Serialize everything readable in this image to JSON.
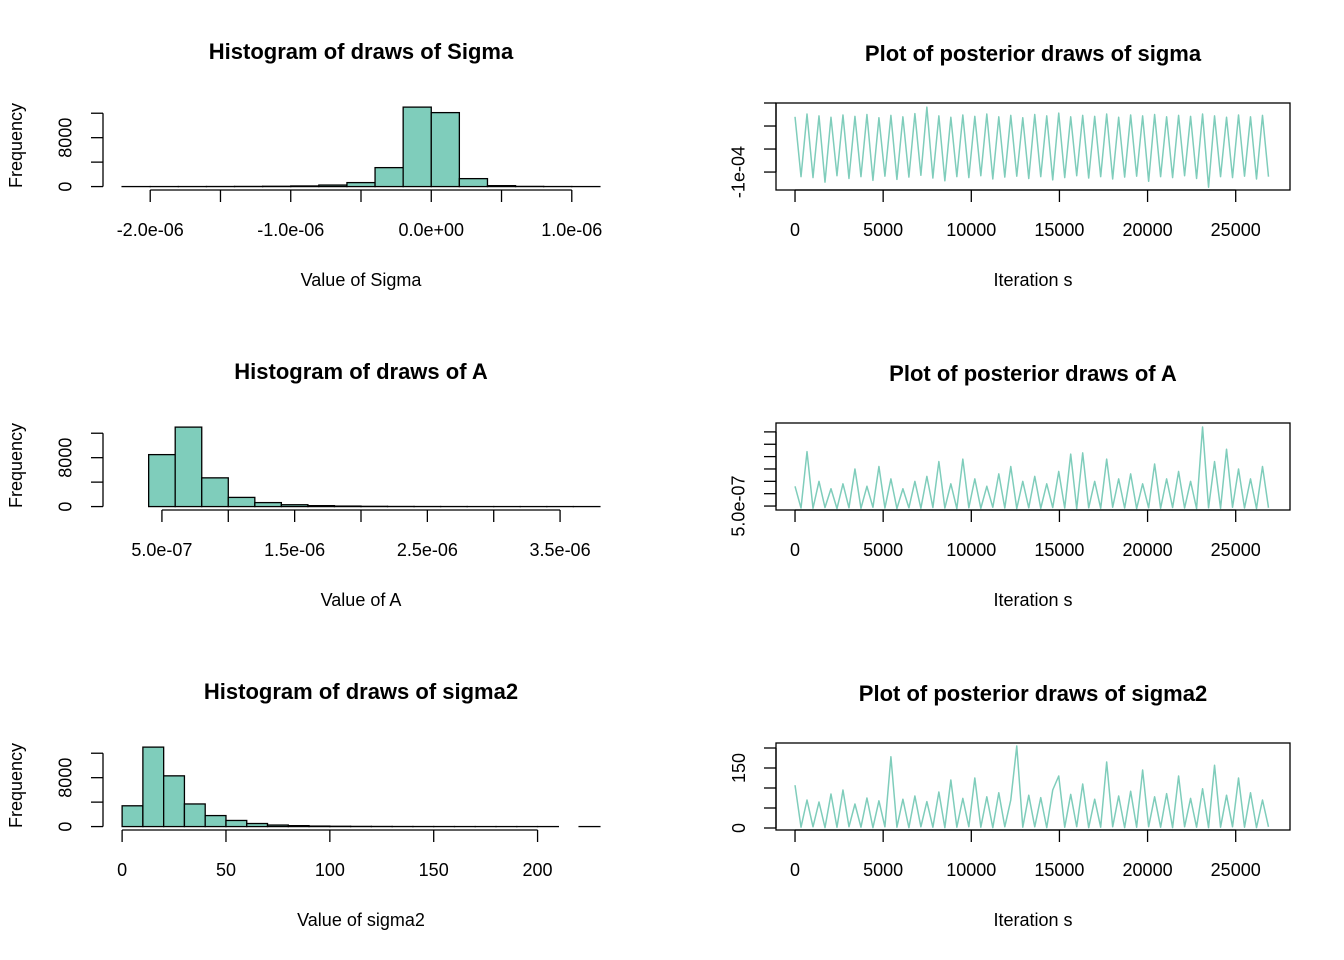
{
  "chart_data": [
    {
      "type": "histogram",
      "title": "Histogram of draws of Sigma",
      "xlabel": "Value of Sigma",
      "ylabel": "Frequency",
      "color": "#7fcdbb",
      "border": "#000000",
      "bins": [
        -2.2e-06,
        -2e-06,
        -1.8e-06,
        -1.6e-06,
        -1.4e-06,
        -1.2e-06,
        -1e-06,
        -8e-07,
        -6e-07,
        -4e-07,
        -2e-07,
        0,
        2e-07,
        4e-07,
        6e-07,
        8e-07,
        1e-06,
        1.2e-06
      ],
      "counts": [
        1,
        3,
        5,
        12,
        25,
        50,
        100,
        250,
        650,
        3100,
        13000,
        12100,
        1300,
        150,
        30,
        6,
        1
      ],
      "xlim": [
        -2.336e-06,
        1.336e-06
      ],
      "ylim": [
        -560,
        14000
      ],
      "xticks": [
        {
          "value": -2e-06,
          "label": "-2.0e-06"
        },
        {
          "value": -1.5e-06,
          "label": null
        },
        {
          "value": -1e-06,
          "label": "-1.0e-06"
        },
        {
          "value": -5e-07,
          "label": null
        },
        {
          "value": 0,
          "label": "0.0e+00"
        },
        {
          "value": 5e-07,
          "label": null
        },
        {
          "value": 1e-06,
          "label": "1.0e-06"
        }
      ],
      "yticks": [
        0,
        {
          "value": 4000,
          "label": null
        },
        8000,
        {
          "value": 12000,
          "label": null
        }
      ]
    },
    {
      "type": "line",
      "title": "Plot of posterior draws of sigma",
      "xlabel": "Iteration s",
      "color": "#7fcdbb",
      "box": true,
      "x": [
        0,
        340,
        680,
        1020,
        1360,
        1700,
        2040,
        2380,
        2720,
        3060,
        3400,
        3740,
        4080,
        4420,
        4760,
        5100,
        5440,
        5780,
        6120,
        6460,
        6800,
        7140,
        7480,
        7820,
        8160,
        8500,
        8840,
        9180,
        9520,
        9860,
        10200,
        10540,
        10880,
        11220,
        11560,
        11900,
        12240,
        12580,
        12920,
        13260,
        13600,
        13940,
        14280,
        14620,
        14960,
        15300,
        15640,
        15980,
        16320,
        16660,
        17000,
        17340,
        17680,
        18020,
        18360,
        18700,
        19040,
        19380,
        19720,
        20060,
        20400,
        20740,
        21080,
        21420,
        21760,
        22100,
        22440,
        22780,
        23120,
        23460,
        23800,
        24140,
        24480,
        24820,
        25160,
        25500,
        25840,
        26180,
        26520,
        26860
      ],
      "values": [
        2e-05,
        -0.00011,
        2.6e-05,
        -0.000112,
        2.2e-05,
        -0.000122,
        1.9e-05,
        -0.000108,
        2.4e-05,
        -0.000114,
        2.1e-05,
        -0.00011,
        2.5e-05,
        -0.000118,
        1.8e-05,
        -0.000109,
        2.3e-05,
        -0.000116,
        2e-05,
        -0.000111,
        2.7e-05,
        -0.000107,
        4.1e-05,
        -0.000113,
        2.2e-05,
        -0.000119,
        1.9e-05,
        -0.00011,
        2.4e-05,
        -0.000112,
        2.1e-05,
        -0.000108,
        2.6e-05,
        -0.000115,
        2e-05,
        -0.000111,
        2.3e-05,
        -0.000109,
        1.8e-05,
        -0.000114,
        2.5e-05,
        -0.00011,
        2.2e-05,
        -0.000117,
        2.8e-05,
        -0.000112,
        2e-05,
        -0.000108,
        2.3e-05,
        -0.000113,
        2.1e-05,
        -0.00011,
        2.6e-05,
        -0.000115,
        1.9e-05,
        -0.000111,
        2.4e-05,
        -0.000109,
        2.2e-05,
        -0.00012,
        2.5e-05,
        -0.00011,
        2e-05,
        -0.000112,
        2.3e-05,
        -0.000108,
        2.1e-05,
        -0.000114,
        2.6e-05,
        -0.000133,
        2.2e-05,
        -0.00011,
        1.9e-05,
        -0.000112,
        2.4e-05,
        -0.000109,
        2e-05,
        -0.000115,
        2.3e-05,
        -0.00011
      ],
      "xlim": [
        -1079,
        28080
      ],
      "ylim": [
        -0.000139,
        5e-05
      ],
      "xticks": [
        0,
        5000,
        10000,
        15000,
        20000,
        25000
      ],
      "yticks": [
        {
          "value": -0.0001,
          "label": "-1e-04"
        },
        {
          "value": -5e-05,
          "label": null
        },
        {
          "value": 0,
          "label": null
        },
        {
          "value": 5e-05,
          "label": null
        }
      ]
    },
    {
      "type": "histogram",
      "title": "Histogram of draws of A",
      "xlabel": "Value of A",
      "ylabel": "Frequency",
      "color": "#7fcdbb",
      "border": "#000000",
      "bins": [
        2e-07,
        4e-07,
        6e-07,
        8e-07,
        1e-06,
        1.2e-06,
        1.4e-06,
        1.6e-06,
        1.8e-06,
        2e-06,
        2.2e-06,
        2.4e-06,
        2.6e-06,
        2.8e-06,
        3e-06,
        3.2e-06,
        3.4e-06,
        3.6e-06,
        3.8e-06
      ],
      "counts": [
        0,
        8500,
        13000,
        4700,
        1500,
        650,
        300,
        150,
        80,
        40,
        20,
        10,
        6,
        3,
        2,
        1,
        1,
        1
      ],
      "xlim": [
        5.6e-08,
        3.944e-06
      ],
      "ylim": [
        -560,
        14000
      ],
      "xticks": [
        {
          "value": 5e-07,
          "label": "5.0e-07"
        },
        {
          "value": 1e-06,
          "label": null
        },
        {
          "value": 1.5e-06,
          "label": "1.5e-06"
        },
        {
          "value": 2e-06,
          "label": null
        },
        {
          "value": 2.5e-06,
          "label": "2.5e-06"
        },
        {
          "value": 3e-06,
          "label": null
        },
        {
          "value": 3.5e-06,
          "label": "3.5e-06"
        }
      ],
      "yticks": [
        0,
        {
          "value": 4000,
          "label": null
        },
        8000,
        {
          "value": 12000,
          "label": null
        }
      ]
    },
    {
      "type": "line",
      "title": "Plot of posterior draws of A",
      "xlabel": "Iteration s",
      "color": "#7fcdbb",
      "box": true,
      "x": [
        0,
        340,
        680,
        1020,
        1360,
        1700,
        2040,
        2380,
        2720,
        3060,
        3400,
        3740,
        4080,
        4420,
        4760,
        5100,
        5440,
        5780,
        6120,
        6460,
        6800,
        7140,
        7480,
        7820,
        8160,
        8500,
        8840,
        9180,
        9520,
        9860,
        10200,
        10540,
        10880,
        11220,
        11560,
        11900,
        12240,
        12580,
        12920,
        13260,
        13600,
        13940,
        14280,
        14620,
        14960,
        15300,
        15640,
        15980,
        16320,
        16660,
        17000,
        17340,
        17680,
        18020,
        18360,
        18700,
        19040,
        19380,
        19720,
        20060,
        20400,
        20740,
        21080,
        21420,
        21760,
        22100,
        22440,
        22780,
        23120,
        23460,
        23800,
        24140,
        24480,
        24820,
        25160,
        25500,
        25840,
        26180,
        26520,
        26860
      ],
      "values": [
        1.3e-06,
        4.2e-07,
        2.7e-06,
        4.1e-07,
        1.5e-06,
        4.4e-07,
        1.2e-06,
        4e-07,
        1.4e-06,
        4.3e-07,
        2e-06,
        4.1e-07,
        1.3e-06,
        4.5e-07,
        2.1e-06,
        4.2e-07,
        1.6e-06,
        4e-07,
        1.2e-06,
        4.3e-07,
        1.5e-06,
        4.1e-07,
        1.7e-06,
        4.4e-07,
        2.3e-06,
        4.2e-07,
        1.4e-06,
        4e-07,
        2.4e-06,
        4.3e-07,
        1.6e-06,
        4.1e-07,
        1.3e-06,
        4.5e-07,
        1.8e-06,
        4.2e-07,
        2.1e-06,
        4e-07,
        1.5e-06,
        4.3e-07,
        1.7e-06,
        4.1e-07,
        1.4e-06,
        4.4e-07,
        1.9e-06,
        4.2e-07,
        2.6e-06,
        4e-07,
        2.65e-06,
        4.3e-07,
        1.5e-06,
        4.1e-07,
        2.4e-06,
        4.5e-07,
        1.6e-06,
        4.2e-07,
        1.8e-06,
        4e-07,
        1.4e-06,
        4.3e-07,
        2.2e-06,
        4.1e-07,
        1.6e-06,
        4.4e-07,
        1.9e-06,
        4.2e-07,
        1.5e-06,
        4e-07,
        3.7e-06,
        4.3e-07,
        2.3e-06,
        4.1e-07,
        2.8e-06,
        4.5e-07,
        2e-06,
        4.2e-07,
        1.6e-06,
        4e-07,
        2.1e-06,
        4.3e-07
      ],
      "xlim": [
        -1079,
        28080
      ],
      "ylim": [
        3.4e-07,
        3.86e-06
      ],
      "xticks": [
        0,
        5000,
        10000,
        15000,
        20000,
        25000
      ],
      "yticks": [
        {
          "value": 5e-07,
          "label": "5.0e-07"
        },
        {
          "value": 1e-06,
          "label": null
        },
        {
          "value": 1.5e-06,
          "label": null
        },
        {
          "value": 2e-06,
          "label": null
        },
        {
          "value": 2.5e-06,
          "label": null
        },
        {
          "value": 3e-06,
          "label": null
        },
        {
          "value": 3.5e-06,
          "label": null
        }
      ]
    },
    {
      "type": "histogram",
      "title": "Histogram of draws of sigma2",
      "xlabel": "Value of sigma2",
      "ylabel": "Frequency",
      "color": "#7fcdbb",
      "border": "#000000",
      "bins": [
        0,
        10,
        20,
        30,
        40,
        50,
        60,
        70,
        80,
        90,
        100,
        110,
        120,
        130,
        140,
        150,
        160,
        170,
        180,
        190,
        200,
        210,
        220,
        230
      ],
      "counts": [
        3400,
        13000,
        8300,
        3700,
        1800,
        1000,
        500,
        250,
        150,
        80,
        50,
        30,
        20,
        12,
        8,
        5,
        3,
        2,
        2,
        1,
        1,
        0,
        1
      ],
      "xlim": [
        -9.2,
        239.2
      ],
      "ylim": [
        -560,
        14000
      ],
      "xticks": [
        0,
        50,
        100,
        150,
        200
      ],
      "yticks": [
        0,
        {
          "value": 4000,
          "label": null
        },
        8000,
        {
          "value": 12000,
          "label": null
        }
      ]
    },
    {
      "type": "line",
      "title": "Plot of posterior draws of sigma2",
      "xlabel": "Iteration s",
      "color": "#7fcdbb",
      "box": true,
      "x": [
        0,
        340,
        680,
        1020,
        1360,
        1700,
        2040,
        2380,
        2720,
        3060,
        3400,
        3740,
        4080,
        4420,
        4760,
        5100,
        5440,
        5780,
        6120,
        6460,
        6800,
        7140,
        7480,
        7820,
        8160,
        8500,
        8840,
        9180,
        9520,
        9860,
        10200,
        10540,
        10880,
        11220,
        11560,
        11900,
        12240,
        12580,
        12920,
        13260,
        13600,
        13940,
        14280,
        14620,
        14960,
        15300,
        15640,
        15980,
        16320,
        16660,
        17000,
        17340,
        17680,
        18020,
        18360,
        18700,
        19040,
        19380,
        19720,
        20060,
        20400,
        20740,
        21080,
        21420,
        21760,
        22100,
        22440,
        22780,
        23120,
        23460,
        23800,
        24140,
        24480,
        24820,
        25160,
        25500,
        25840,
        26180,
        26520,
        26860
      ],
      "values": [
        107,
        2,
        70,
        3,
        65,
        1,
        85,
        2,
        95,
        3,
        60,
        2,
        75,
        1,
        68,
        3,
        178,
        2,
        72,
        1,
        80,
        3,
        66,
        2,
        90,
        1,
        120,
        2,
        74,
        3,
        125,
        2,
        78,
        1,
        88,
        3,
        70,
        205,
        2,
        82,
        3,
        76,
        1,
        95,
        130,
        2,
        84,
        3,
        110,
        1,
        72,
        2,
        165,
        3,
        80,
        1,
        92,
        2,
        145,
        3,
        78,
        2,
        86,
        1,
        130,
        3,
        74,
        2,
        98,
        1,
        157,
        2,
        82,
        3,
        125,
        2,
        88,
        1,
        70,
        3
      ],
      "xlim": [
        -1079,
        28080
      ],
      "ylim": [
        -5,
        212.5
      ],
      "xticks": [
        0,
        5000,
        10000,
        15000,
        20000,
        25000
      ],
      "yticks": [
        0,
        {
          "value": 50,
          "label": null
        },
        {
          "value": 100,
          "label": null
        },
        150,
        {
          "value": 200,
          "label": null
        }
      ]
    }
  ]
}
